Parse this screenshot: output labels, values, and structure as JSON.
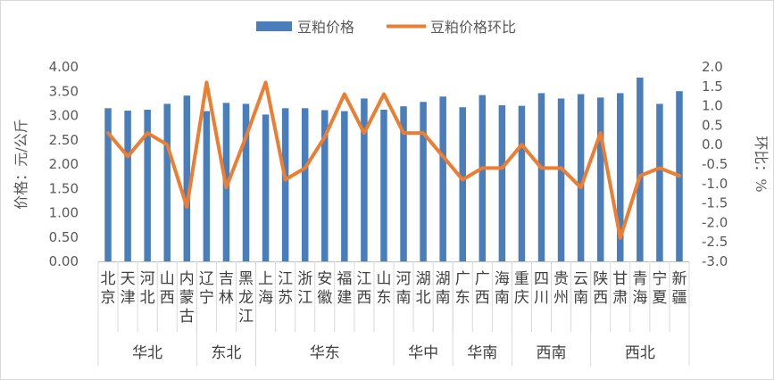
{
  "chart_data": {
    "type": "bar",
    "legend_position": "top",
    "legend": [
      "豆粕价格",
      "豆粕价格环比"
    ],
    "ylabel_left": "价格：元/公斤",
    "ylabel_right": "环比：%",
    "left_axis": {
      "min": 0,
      "max": 4,
      "ticks": [
        "0.00",
        "0.50",
        "1.00",
        "1.50",
        "2.00",
        "2.50",
        "3.00",
        "3.50",
        "4.00"
      ]
    },
    "right_axis": {
      "min": -3,
      "max": 2,
      "ticks": [
        "2.0",
        "1.5",
        "1.0",
        "0.5",
        "0.0",
        "-0.5",
        "-1.0",
        "-1.5",
        "-2.0",
        "-2.5",
        "-3.0"
      ],
      "negative_color": "#ff0000"
    },
    "categories": [
      "北京",
      "天津",
      "河北",
      "山西",
      "内蒙古",
      "辽宁",
      "吉林",
      "黑龙江",
      "上海",
      "江苏",
      "浙江",
      "安徽",
      "福建",
      "江西",
      "山东",
      "河南",
      "湖北",
      "湖南",
      "广东",
      "广西",
      "海南",
      "重庆",
      "四川",
      "贵州",
      "云南",
      "陕西",
      "甘肃",
      "青海",
      "宁夏",
      "新疆"
    ],
    "groups": [
      {
        "name": "华北",
        "count": 5
      },
      {
        "name": "东北",
        "count": 3
      },
      {
        "name": "华东",
        "count": 7
      },
      {
        "name": "华中",
        "count": 3
      },
      {
        "name": "华南",
        "count": 3
      },
      {
        "name": "西南",
        "count": 4
      },
      {
        "name": "西北",
        "count": 5
      }
    ],
    "series": [
      {
        "name": "豆粕价格",
        "type": "bar",
        "axis": "left",
        "color": "#4a7ebb",
        "values": [
          3.15,
          3.1,
          3.12,
          3.24,
          3.41,
          3.09,
          3.26,
          3.24,
          3.02,
          3.15,
          3.15,
          3.11,
          3.09,
          3.35,
          3.12,
          3.19,
          3.28,
          3.39,
          3.17,
          3.42,
          3.21,
          3.2,
          3.46,
          3.35,
          3.44,
          3.37,
          3.46,
          3.78,
          3.24,
          3.5
        ]
      },
      {
        "name": "豆粕价格环比",
        "type": "line",
        "axis": "right",
        "color": "#ed7d31",
        "values": [
          0.3,
          -0.3,
          0.3,
          0.0,
          -1.6,
          1.6,
          -1.1,
          0.2,
          1.6,
          -0.9,
          -0.6,
          0.2,
          1.3,
          0.3,
          1.3,
          0.3,
          0.3,
          -0.3,
          -0.9,
          -0.6,
          -0.6,
          0.0,
          -0.6,
          -0.6,
          -1.1,
          0.3,
          -2.4,
          -0.8,
          -0.6,
          -0.8
        ]
      }
    ]
  }
}
